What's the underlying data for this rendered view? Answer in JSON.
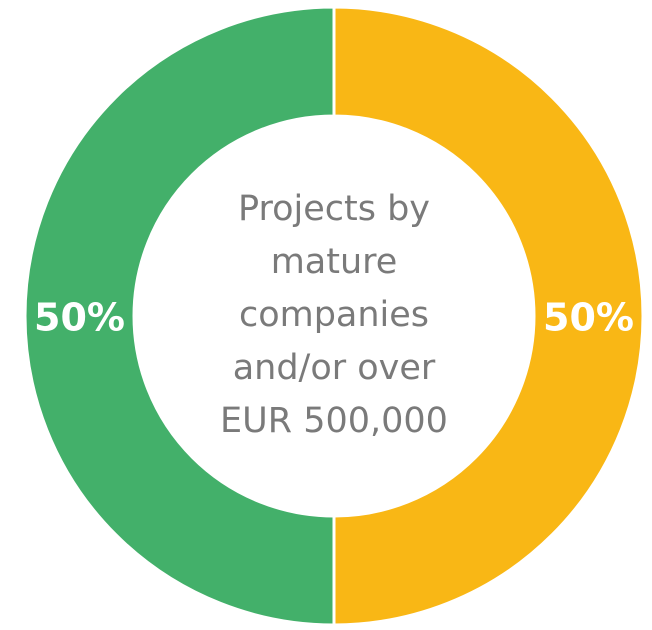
{
  "chart_data": {
    "type": "donut",
    "values": [
      50,
      50
    ],
    "value_labels": [
      "50%",
      "50%"
    ],
    "colors": [
      "#f9b715",
      "#43b06a"
    ],
    "center_label": [
      "Projects by",
      "mature",
      "companies",
      "and/or over",
      "EUR 500,000"
    ]
  }
}
